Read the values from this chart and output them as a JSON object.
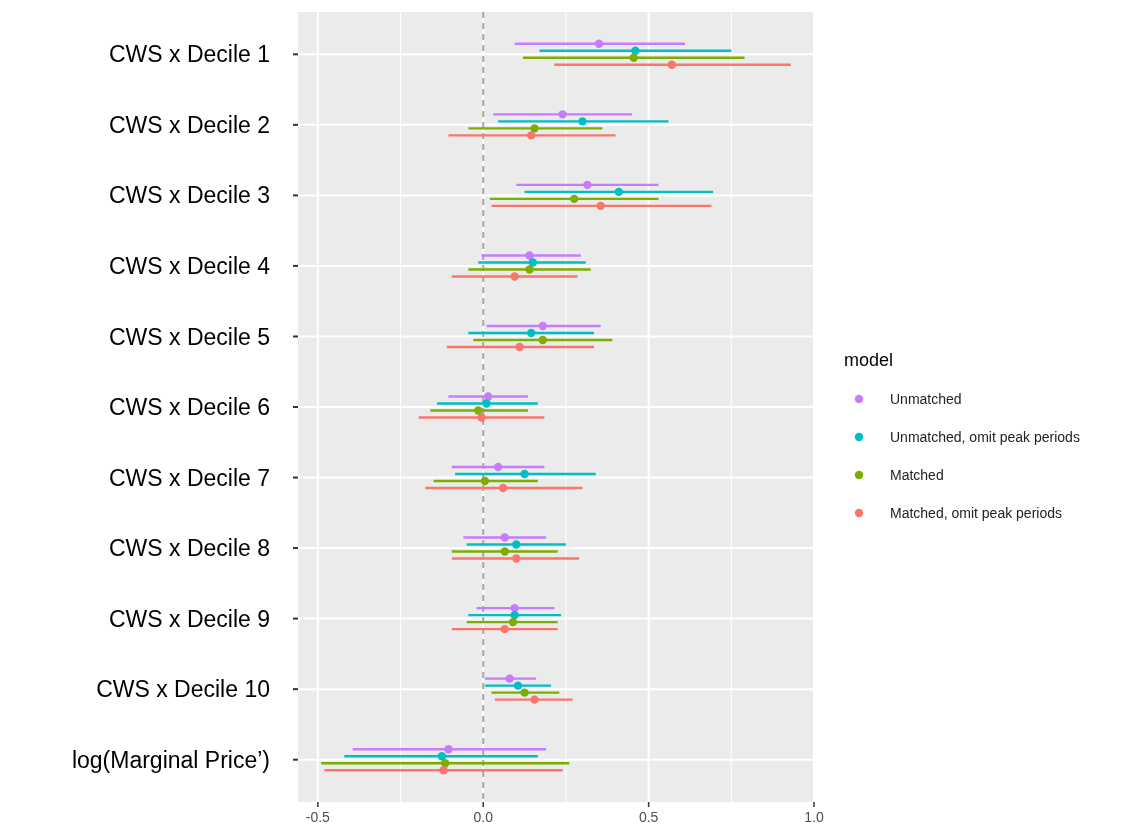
{
  "chart_data": {
    "type": "scatter",
    "orientation": "horizontal",
    "legend_title": "model",
    "legend": "right",
    "grid": true,
    "marker": "circle",
    "categories": [
      "CWS x Decile 1",
      "CWS x Decile 2",
      "CWS x Decile 3",
      "CWS x Decile 4",
      "CWS x Decile 5",
      "CWS x Decile 6",
      "CWS x Decile 7",
      "CWS x Decile 8",
      "CWS x Decile 9",
      "CWS x Decile 10",
      "log(Marginal Price’)"
    ],
    "xlim": [
      -0.56,
      1.0
    ],
    "xticks": [
      {
        "value": -0.5,
        "label": "-0.5"
      },
      {
        "value": -0.25,
        "label": null
      },
      {
        "value": 0,
        "label": "0.0"
      },
      {
        "value": 0.25,
        "label": null
      },
      {
        "value": 0.5,
        "label": "0.5"
      },
      {
        "value": 0.75,
        "label": null
      },
      {
        "value": 1,
        "label": "1.0"
      }
    ],
    "ref_lines": [
      {
        "axis": "x",
        "value": 0,
        "color": "#a6a6a6",
        "line_style": "dashed"
      }
    ],
    "series": [
      {
        "name": "Unmatched",
        "color": "#c77cff",
        "values": [
          0.35,
          0.24,
          0.315,
          0.14,
          0.18,
          0.015,
          0.045,
          0.065,
          0.095,
          0.08,
          -0.105
        ],
        "errors": [
          [
            0.095,
            0.61
          ],
          [
            0.03,
            0.45
          ],
          [
            0.1,
            0.53
          ],
          [
            -0.005,
            0.295
          ],
          [
            0.01,
            0.355
          ],
          [
            -0.105,
            0.135
          ],
          [
            -0.095,
            0.185
          ],
          [
            -0.06,
            0.19
          ],
          [
            -0.02,
            0.215
          ],
          [
            0.005,
            0.16
          ],
          [
            -0.395,
            0.19
          ]
        ]
      },
      {
        "name": "Unmatched, omit peak periods",
        "color": "#00bfc4",
        "values": [
          0.46,
          0.3,
          0.41,
          0.15,
          0.145,
          0.01,
          0.125,
          0.1,
          0.095,
          0.105,
          -0.125
        ],
        "errors": [
          [
            0.17,
            0.75
          ],
          [
            0.045,
            0.56
          ],
          [
            0.125,
            0.695
          ],
          [
            -0.015,
            0.31
          ],
          [
            -0.045,
            0.335
          ],
          [
            -0.14,
            0.165
          ],
          [
            -0.085,
            0.34
          ],
          [
            -0.05,
            0.25
          ],
          [
            -0.045,
            0.235
          ],
          [
            0.005,
            0.205
          ],
          [
            -0.42,
            0.165
          ]
        ]
      },
      {
        "name": "Matched",
        "color": "#7cae00",
        "values": [
          0.455,
          0.155,
          0.275,
          0.14,
          0.18,
          -0.015,
          0.005,
          0.065,
          0.09,
          0.125,
          -0.115
        ],
        "errors": [
          [
            0.12,
            0.79
          ],
          [
            -0.045,
            0.36
          ],
          [
            0.02,
            0.53
          ],
          [
            -0.045,
            0.325
          ],
          [
            -0.03,
            0.39
          ],
          [
            -0.16,
            0.135
          ],
          [
            -0.15,
            0.165
          ],
          [
            -0.095,
            0.225
          ],
          [
            -0.05,
            0.225
          ],
          [
            0.025,
            0.23
          ],
          [
            -0.49,
            0.26
          ]
        ]
      },
      {
        "name": "Matched, omit peak periods",
        "color": "#f8766d",
        "values": [
          0.57,
          0.145,
          0.355,
          0.095,
          0.11,
          -0.005,
          0.06,
          0.1,
          0.065,
          0.155,
          -0.12
        ],
        "errors": [
          [
            0.215,
            0.93
          ],
          [
            -0.105,
            0.4
          ],
          [
            0.025,
            0.69
          ],
          [
            -0.095,
            0.285
          ],
          [
            -0.11,
            0.335
          ],
          [
            -0.195,
            0.185
          ],
          [
            -0.175,
            0.3
          ],
          [
            -0.095,
            0.29
          ],
          [
            -0.095,
            0.225
          ],
          [
            0.035,
            0.27
          ],
          [
            -0.48,
            0.24
          ]
        ]
      }
    ]
  }
}
